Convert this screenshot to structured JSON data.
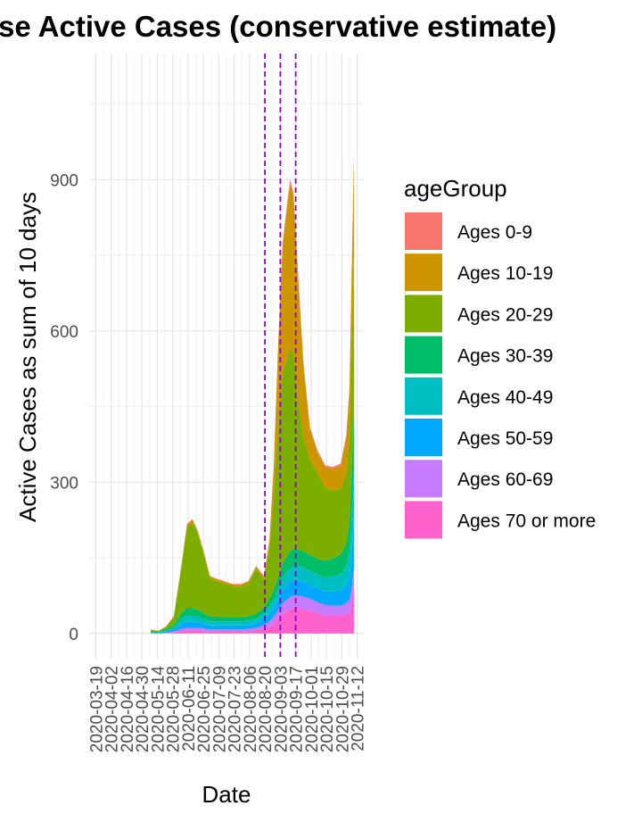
{
  "chart_data": {
    "type": "area",
    "stacked": true,
    "title": "se Active Cases (conservative estimate)",
    "xlabel": "Date",
    "ylabel": "Active Cases as sum of 10 days",
    "ylim": [
      -50,
      1150
    ],
    "xlim": [
      "2020-03-13",
      "2020-11-18"
    ],
    "yticks": [
      0,
      300,
      600,
      900
    ],
    "xticks": [
      "2020-03-19",
      "2020-04-02",
      "2020-04-16",
      "2020-04-30",
      "2020-05-14",
      "2020-05-28",
      "2020-06-11",
      "2020-06-25",
      "2020-07-09",
      "2020-07-23",
      "2020-08-06",
      "2020-08-20",
      "2020-09-03",
      "2020-09-17",
      "2020-10-01",
      "2020-10-15",
      "2020-10-29",
      "2020-11-12"
    ],
    "grid": true,
    "vlines": [
      "2020-08-20",
      "2020-09-03",
      "2020-09-17"
    ],
    "vline_color": "#9400D3",
    "legend": {
      "title": "ageGroup",
      "placement": "right"
    },
    "x": [
      "2020-05-08",
      "2020-05-15",
      "2020-05-22",
      "2020-05-29",
      "2020-06-05",
      "2020-06-10",
      "2020-06-15",
      "2020-06-20",
      "2020-06-25",
      "2020-07-01",
      "2020-07-08",
      "2020-07-15",
      "2020-07-22",
      "2020-07-29",
      "2020-08-05",
      "2020-08-12",
      "2020-08-19",
      "2020-08-24",
      "2020-08-28",
      "2020-09-01",
      "2020-09-05",
      "2020-09-09",
      "2020-09-12",
      "2020-09-15",
      "2020-09-19",
      "2020-09-24",
      "2020-09-30",
      "2020-10-07",
      "2020-10-14",
      "2020-10-21",
      "2020-10-28",
      "2020-11-02",
      "2020-11-05",
      "2020-11-07",
      "2020-11-09"
    ],
    "series": [
      {
        "name": "Ages 70 or more",
        "color": "#FF61CC",
        "values": [
          0,
          0,
          1,
          2,
          5,
          6,
          6,
          6,
          5,
          4,
          4,
          4,
          4,
          4,
          5,
          6,
          10,
          14,
          20,
          30,
          40,
          45,
          48,
          50,
          50,
          48,
          45,
          40,
          36,
          35,
          35,
          38,
          42,
          60,
          90
        ]
      },
      {
        "name": "Ages 60-69",
        "color": "#C77CFF",
        "values": [
          0,
          0,
          1,
          2,
          4,
          5,
          5,
          5,
          5,
          4,
          4,
          4,
          4,
          4,
          4,
          5,
          7,
          10,
          13,
          16,
          20,
          22,
          24,
          25,
          25,
          25,
          24,
          22,
          20,
          20,
          20,
          22,
          25,
          30,
          40
        ]
      },
      {
        "name": "Ages 50-59",
        "color": "#00A9FF",
        "values": [
          1,
          1,
          2,
          4,
          10,
          12,
          12,
          11,
          9,
          8,
          8,
          8,
          8,
          8,
          8,
          9,
          12,
          15,
          18,
          22,
          26,
          28,
          30,
          30,
          30,
          30,
          28,
          27,
          27,
          28,
          30,
          35,
          45,
          70,
          95
        ]
      },
      {
        "name": "Ages 40-49",
        "color": "#00BFC4",
        "values": [
          1,
          1,
          2,
          4,
          10,
          12,
          12,
          11,
          9,
          8,
          8,
          8,
          8,
          8,
          8,
          9,
          11,
          14,
          17,
          20,
          24,
          26,
          28,
          28,
          28,
          28,
          27,
          27,
          28,
          30,
          32,
          38,
          50,
          75,
          100
        ]
      },
      {
        "name": "Ages 30-39",
        "color": "#00BE67",
        "values": [
          1,
          1,
          3,
          5,
          12,
          15,
          15,
          14,
          12,
          10,
          9,
          9,
          9,
          9,
          9,
          10,
          12,
          15,
          19,
          23,
          28,
          32,
          34,
          34,
          33,
          32,
          31,
          32,
          33,
          36,
          40,
          45,
          60,
          90,
          120
        ]
      },
      {
        "name": "Ages 20-29",
        "color": "#7CAE00",
        "values": [
          4,
          2,
          4,
          15,
          90,
          160,
          170,
          150,
          120,
          75,
          70,
          65,
          60,
          60,
          65,
          90,
          55,
          100,
          180,
          300,
          380,
          390,
          400,
          390,
          300,
          230,
          190,
          170,
          145,
          135,
          130,
          140,
          170,
          240,
          300
        ]
      },
      {
        "name": "Ages 10-19",
        "color": "#CD9600",
        "values": [
          1,
          0,
          1,
          2,
          5,
          6,
          6,
          5,
          4,
          4,
          4,
          4,
          4,
          4,
          4,
          4,
          5,
          15,
          60,
          160,
          250,
          300,
          330,
          310,
          250,
          140,
          60,
          40,
          40,
          42,
          45,
          70,
          90,
          150,
          200
        ]
      },
      {
        "name": "Ages 0-9",
        "color": "#F8766D",
        "values": [
          0,
          0,
          0,
          0,
          1,
          1,
          1,
          1,
          1,
          1,
          1,
          1,
          1,
          1,
          1,
          1,
          2,
          2,
          3,
          4,
          5,
          6,
          7,
          7,
          6,
          5,
          4,
          4,
          4,
          4,
          5,
          5,
          6,
          8,
          10
        ]
      }
    ]
  }
}
